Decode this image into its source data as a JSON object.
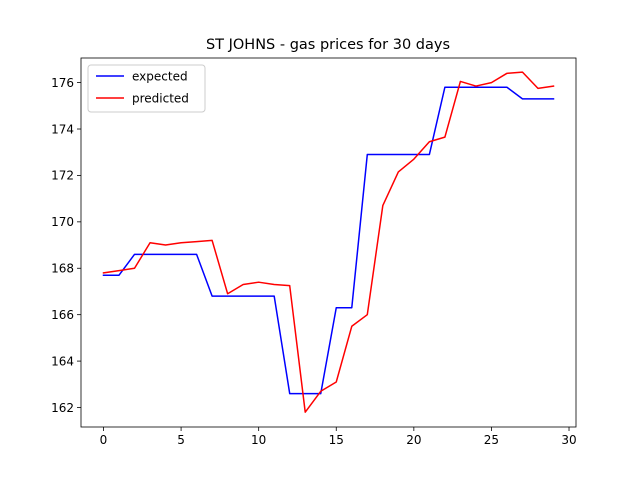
{
  "chart_data": {
    "type": "line",
    "title": "ST JOHNS - gas prices for 30 days",
    "xlabel": "",
    "ylabel": "",
    "xlim": [
      -1.45,
      30.45
    ],
    "ylim": [
      161.16,
      177.06
    ],
    "xticks": [
      0,
      5,
      10,
      15,
      20,
      25,
      30
    ],
    "yticks": [
      162,
      164,
      166,
      168,
      170,
      172,
      174,
      176
    ],
    "grid": false,
    "legend": "top-left",
    "x": [
      0,
      1,
      2,
      3,
      4,
      5,
      6,
      7,
      8,
      9,
      10,
      11,
      12,
      13,
      14,
      15,
      16,
      17,
      18,
      19,
      20,
      21,
      22,
      23,
      24,
      25,
      26,
      27,
      28,
      29
    ],
    "series": [
      {
        "name": "expected",
        "color": "#0000ff",
        "values": [
          167.7,
          167.7,
          168.6,
          168.6,
          168.6,
          168.6,
          168.6,
          166.8,
          166.8,
          166.8,
          166.8,
          166.8,
          162.6,
          162.6,
          162.6,
          166.3,
          166.3,
          172.9,
          172.9,
          172.9,
          172.9,
          172.9,
          175.8,
          175.8,
          175.8,
          175.8,
          175.8,
          175.3,
          175.3,
          175.3
        ]
      },
      {
        "name": "predicted",
        "color": "#ff0000",
        "values": [
          167.8,
          167.9,
          168.0,
          169.1,
          169.0,
          169.1,
          169.15,
          169.2,
          166.9,
          167.3,
          167.4,
          167.3,
          167.25,
          161.8,
          162.7,
          163.1,
          165.5,
          166.0,
          170.7,
          172.15,
          172.7,
          173.45,
          173.65,
          176.05,
          175.85,
          176.0,
          176.4,
          176.45,
          175.75,
          175.85
        ]
      }
    ]
  }
}
